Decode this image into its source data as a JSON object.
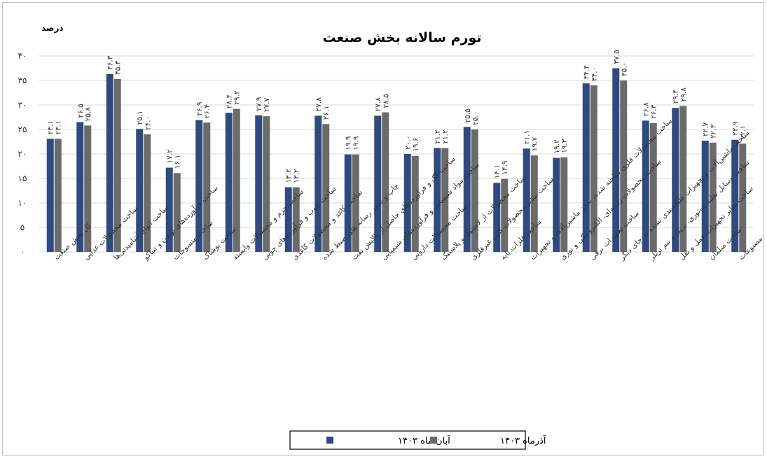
{
  "chart_data": {
    "type": "bar",
    "title": "تورم سالانه بخش صنعت",
    "ylabel": "درصد",
    "ylim": [
      0,
      40
    ],
    "yticks": [
      "۰",
      "۵",
      "۱۰",
      "۱۵",
      "۲۰",
      "۲۵",
      "۳۰",
      "۳۵",
      "۴۰"
    ],
    "grid": true,
    "legend_position": "bottom",
    "categories": [
      "کل بخش صنعت",
      "ساخت محصولات غذایی",
      "ساخت انواع آشامیدنی‌ها",
      "ساخت فرآورده‌های توتون و تنباکو",
      "ساخت منسوجات",
      "ساخت پوشاک",
      "ساخت چرم و محصولات وابسته",
      "ساخت چوب و فرآورده‌های چوبی",
      "ساخت کاغذ و محصولات کاغذی",
      "چاپ و تکثیر رسانه های ضبط شده",
      "ساخت کک و فرآورده‌های حاصل از پالایش نفت",
      "ساخت مواد شیمیایی و فرآورده‌های شیمیایی",
      "ساخت محصولات دارویی",
      "ساخت محصولات از لاستیک و پلاستیک",
      "ساخت سایر محصولات کانی غیرفلزی",
      "ساخت فلزات پایه",
      "ساخت محصولات فلزی ساخته شده، به‌جز ماشین‌آلات و تجهیزات",
      "ساخت محصولات رایانه‌ای، الکترونیکی و نوری",
      "ساخت تجهیزات برقی",
      "ساخت ماشین‌آلات و تجهیزات طبقه‌بندی نشده در جای دیگر",
      "ساخت وسایل نقلیه موتوری، تریلر و نیم تریلر",
      "ساخت سایر تجهیزات حمل و نقل",
      "ساخت مبلمان",
      "ساخت سایر مصنوعات"
    ],
    "series": [
      {
        "name": "آبان ماه ۱۴۰۳",
        "color": "#2f4a7f",
        "values": [
          23.1,
          26.5,
          36.3,
          25.1,
          17.2,
          26.9,
          28.4,
          27.9,
          13.2,
          27.8,
          19.9,
          27.8,
          20.0,
          21.2,
          25.5,
          14.1,
          21.1,
          19.2,
          34.4,
          37.5,
          26.8,
          29.4,
          22.7,
          22.9
        ],
        "labels": [
          "۲۳.۱",
          "۲۶.۵",
          "۳۶.۳",
          "۲۵.۱",
          "۱۷.۲",
          "۲۶.۹",
          "۲۸.۴",
          "۲۷.۹",
          "۱۳.۲",
          "۲۷.۸",
          "۱۹.۹",
          "۲۷.۸",
          "۲۰.۰",
          "۲۱.۲",
          "۲۵.۵",
          "۱۴.۱",
          "۲۱.۱",
          "۱۹.۲",
          "۳۴.۴",
          "۳۷.۵",
          "۲۶.۸",
          "۲۹.۴",
          "۲۲.۷",
          "۲۲.۹"
        ]
      },
      {
        "name": "آذرماه ۱۴۰۳",
        "color": "#6b6b6b",
        "values": [
          23.1,
          25.8,
          35.3,
          24.0,
          16.1,
          26.4,
          29.2,
          27.7,
          13.2,
          26.1,
          19.9,
          28.5,
          19.6,
          21.2,
          25.0,
          14.9,
          19.7,
          19.3,
          34.0,
          35.0,
          26.3,
          29.8,
          22.3,
          22.1
        ],
        "labels": [
          "۲۳.۱",
          "۲۵.۸",
          "۳۵.۳",
          "۲۴.۰",
          "۱۶.۱",
          "۲۶.۴",
          "۲۹.۲",
          "۲۷.۷",
          "۱۳.۲",
          "۲۶.۱",
          "۱۹.۹",
          "۲۸.۵",
          "۱۹.۶",
          "۲۱.۲",
          "۲۵.۰",
          "۱۴.۹",
          "۱۹.۷",
          "۱۹.۳",
          "۳۴.۰",
          "۳۵.۰",
          "۲۶.۳",
          "۲۹.۸",
          "۲۲.۳",
          "۲۲.۱"
        ]
      }
    ]
  }
}
